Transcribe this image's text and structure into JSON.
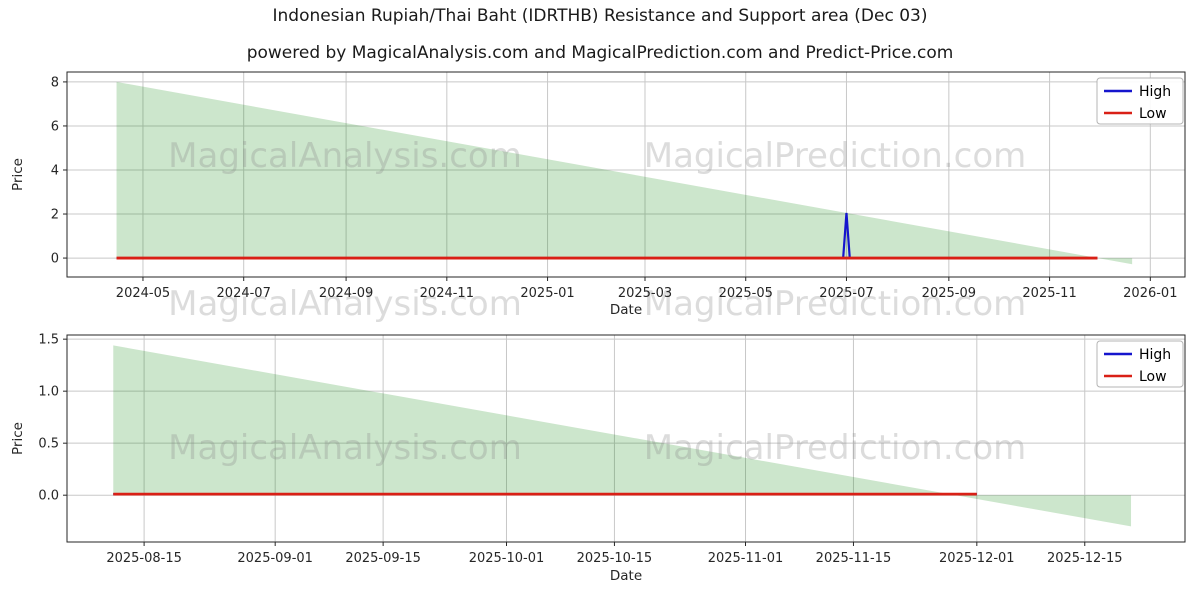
{
  "title": "Indonesian Rupiah/Thai Baht (IDRTHB) Resistance and Support area (Dec 03)",
  "subtitle": "powered by MagicalAnalysis.com and MagicalPrediction.com and Predict-Price.com",
  "watermarks": {
    "left_text": "MagicalAnalysis.com",
    "right_text": "MagicalPrediction.com"
  },
  "colors": {
    "support_area_green": "#008000",
    "high_blue": "#1515cd",
    "low_red": "#d92016",
    "grid_gray": "#c8c8c8",
    "axis_text": "#262626"
  },
  "chart_data": [
    {
      "type": "area",
      "panel": "top",
      "xlabel": "Date",
      "ylabel": "Price",
      "grid": true,
      "legend_position": "upper right",
      "legend": [
        {
          "label": "High",
          "color": "#1515cd"
        },
        {
          "label": "Low",
          "color": "#d92016"
        }
      ],
      "x_range": [
        "2024-03-16",
        "2026-01-22"
      ],
      "y_range": [
        -0.86,
        8.45
      ],
      "x_ticks": [
        {
          "date": "2024-05-01",
          "label": "2024-05"
        },
        {
          "date": "2024-07-01",
          "label": "2024-07"
        },
        {
          "date": "2024-09-01",
          "label": "2024-09"
        },
        {
          "date": "2024-11-01",
          "label": "2024-11"
        },
        {
          "date": "2025-01-01",
          "label": "2025-01"
        },
        {
          "date": "2025-03-01",
          "label": "2025-03"
        },
        {
          "date": "2025-05-01",
          "label": "2025-05"
        },
        {
          "date": "2025-07-01",
          "label": "2025-07"
        },
        {
          "date": "2025-09-01",
          "label": "2025-09"
        },
        {
          "date": "2025-11-01",
          "label": "2025-11"
        },
        {
          "date": "2026-01-01",
          "label": "2026-01"
        }
      ],
      "y_ticks": [
        {
          "value": 0,
          "label": "0"
        },
        {
          "value": 2,
          "label": "2"
        },
        {
          "value": 4,
          "label": "4"
        },
        {
          "value": 6,
          "label": "6"
        },
        {
          "value": 8,
          "label": "8"
        }
      ],
      "support_area": {
        "color": "#008000",
        "opacity": 0.2,
        "top_edge": [
          [
            "2024-04-15",
            8.0
          ],
          [
            "2025-12-21",
            -0.28
          ]
        ],
        "baseline": 0.0
      },
      "series": [
        {
          "name": "High",
          "color": "#1515cd",
          "points": [
            [
              "2024-04-15",
              0.0
            ],
            [
              "2025-06-29",
              0.0
            ],
            [
              "2025-07-01",
              2.05
            ],
            [
              "2025-07-03",
              0.0
            ],
            [
              "2025-11-30",
              0.0
            ]
          ]
        },
        {
          "name": "Low",
          "color": "#d92016",
          "points": [
            [
              "2024-04-15",
              0.0
            ],
            [
              "2025-11-30",
              0.0
            ]
          ]
        }
      ]
    },
    {
      "type": "area",
      "panel": "bottom",
      "xlabel": "Date",
      "ylabel": "Price",
      "grid": true,
      "legend_position": "upper right",
      "legend": [
        {
          "label": "High",
          "color": "#1515cd"
        },
        {
          "label": "Low",
          "color": "#d92016"
        }
      ],
      "x_range": [
        "2025-08-05",
        "2025-12-28"
      ],
      "y_range": [
        -0.45,
        1.54
      ],
      "x_ticks": [
        {
          "date": "2025-08-15",
          "label": "2025-08-15"
        },
        {
          "date": "2025-09-01",
          "label": "2025-09-01"
        },
        {
          "date": "2025-09-15",
          "label": "2025-09-15"
        },
        {
          "date": "2025-10-01",
          "label": "2025-10-01"
        },
        {
          "date": "2025-10-15",
          "label": "2025-10-15"
        },
        {
          "date": "2025-11-01",
          "label": "2025-11-01"
        },
        {
          "date": "2025-11-15",
          "label": "2025-11-15"
        },
        {
          "date": "2025-12-01",
          "label": "2025-12-01"
        },
        {
          "date": "2025-12-15",
          "label": "2025-12-15"
        }
      ],
      "y_ticks": [
        {
          "value": 0,
          "label": "0.0"
        },
        {
          "value": 0.5,
          "label": "0.5"
        },
        {
          "value": 1,
          "label": "1.0"
        },
        {
          "value": 1.5,
          "label": "1.5"
        }
      ],
      "support_area": {
        "color": "#008000",
        "opacity": 0.2,
        "top_edge": [
          [
            "2025-08-11",
            1.44
          ],
          [
            "2025-12-21",
            -0.3
          ]
        ],
        "baseline": 0.0
      },
      "series": [
        {
          "name": "High",
          "color": "#1515cd",
          "points": [
            [
              "2025-08-11",
              0.01
            ],
            [
              "2025-12-01",
              0.01
            ]
          ]
        },
        {
          "name": "Low",
          "color": "#d92016",
          "points": [
            [
              "2025-08-11",
              0.01
            ],
            [
              "2025-12-01",
              0.01
            ]
          ]
        }
      ]
    }
  ]
}
